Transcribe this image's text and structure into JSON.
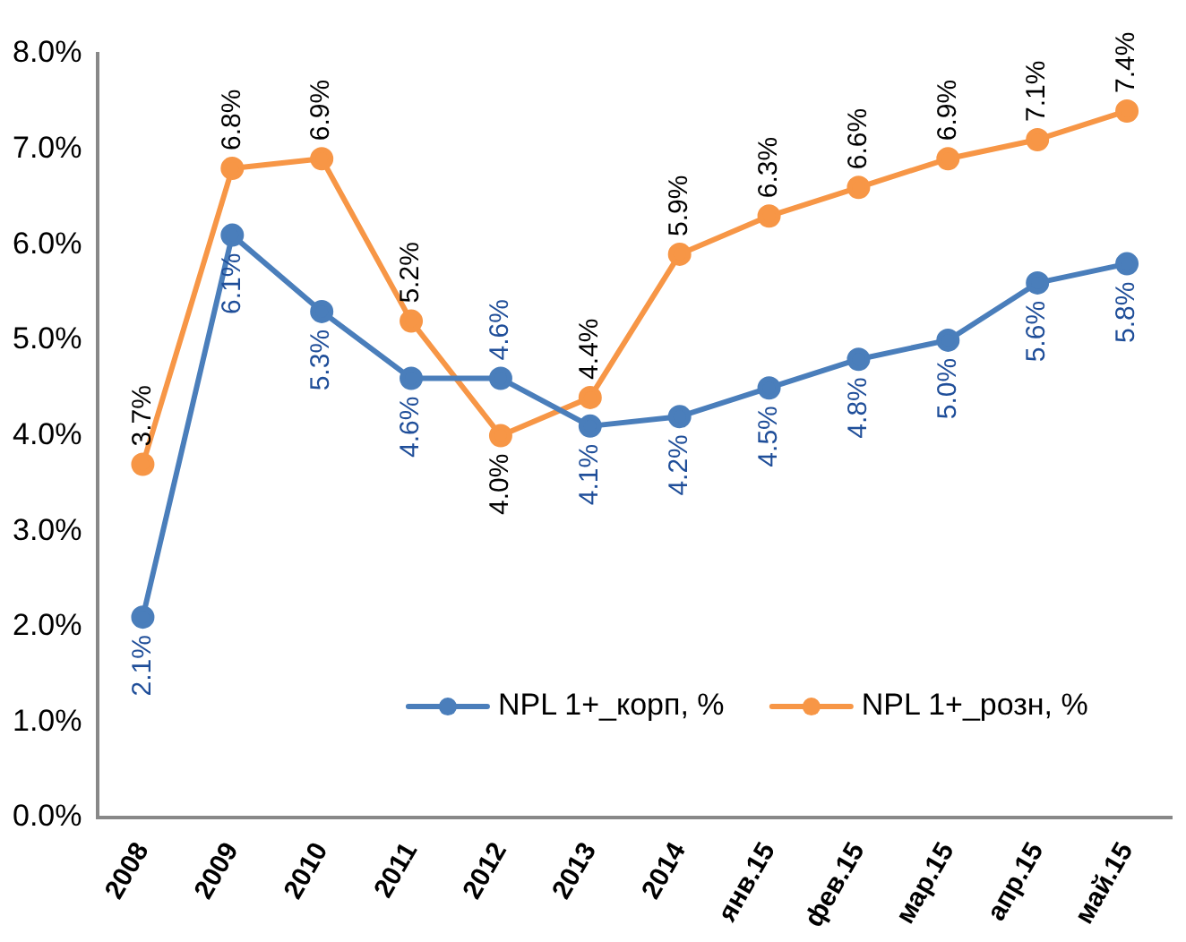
{
  "chart_data": {
    "type": "line",
    "categories": [
      "2008",
      "2009",
      "2010",
      "2011",
      "2012",
      "2013",
      "2014",
      "янв.15",
      "фев.15",
      "мар.15",
      "апр.15",
      "май.15"
    ],
    "series": [
      {
        "name": "NPL 1+_корп, %",
        "color": "#4a7ebb",
        "values": [
          2.1,
          6.1,
          5.3,
          4.6,
          4.6,
          4.1,
          4.2,
          4.5,
          4.8,
          5.0,
          5.6,
          5.8
        ],
        "value_labels": [
          "2.1%",
          "6.1%",
          "5.3%",
          "4.6%",
          "4.6%",
          "4.1%",
          "4.2%",
          "4.5%",
          "4.8%",
          "5.0%",
          "5.6%",
          "5.8%"
        ]
      },
      {
        "name": "NPL 1+_розн, %",
        "color": "#f79646",
        "values": [
          3.7,
          6.8,
          6.9,
          5.2,
          4.0,
          4.4,
          5.9,
          6.3,
          6.6,
          6.9,
          7.1,
          7.4
        ],
        "value_labels": [
          "3.7%",
          "6.8%",
          "6.9%",
          "5.2%",
          "4.0%",
          "4.4%",
          "5.9%",
          "6.3%",
          "6.6%",
          "6.9%",
          "7.1%",
          "7.4%"
        ]
      }
    ],
    "ylim": [
      0,
      8
    ],
    "yticks": [
      {
        "value": 0,
        "label": "0.0%"
      },
      {
        "value": 1,
        "label": "1.0%"
      },
      {
        "value": 2,
        "label": "2.0%"
      },
      {
        "value": 3,
        "label": "3.0%"
      },
      {
        "value": 4,
        "label": "4.0%"
      },
      {
        "value": 5,
        "label": "5.0%"
      },
      {
        "value": 6,
        "label": "6.0%"
      },
      {
        "value": 7,
        "label": "7.0%"
      },
      {
        "value": 8,
        "label": "8.0%"
      }
    ],
    "grid": false,
    "legend": "bottom right",
    "marker": "circle",
    "line_style": "solid"
  }
}
